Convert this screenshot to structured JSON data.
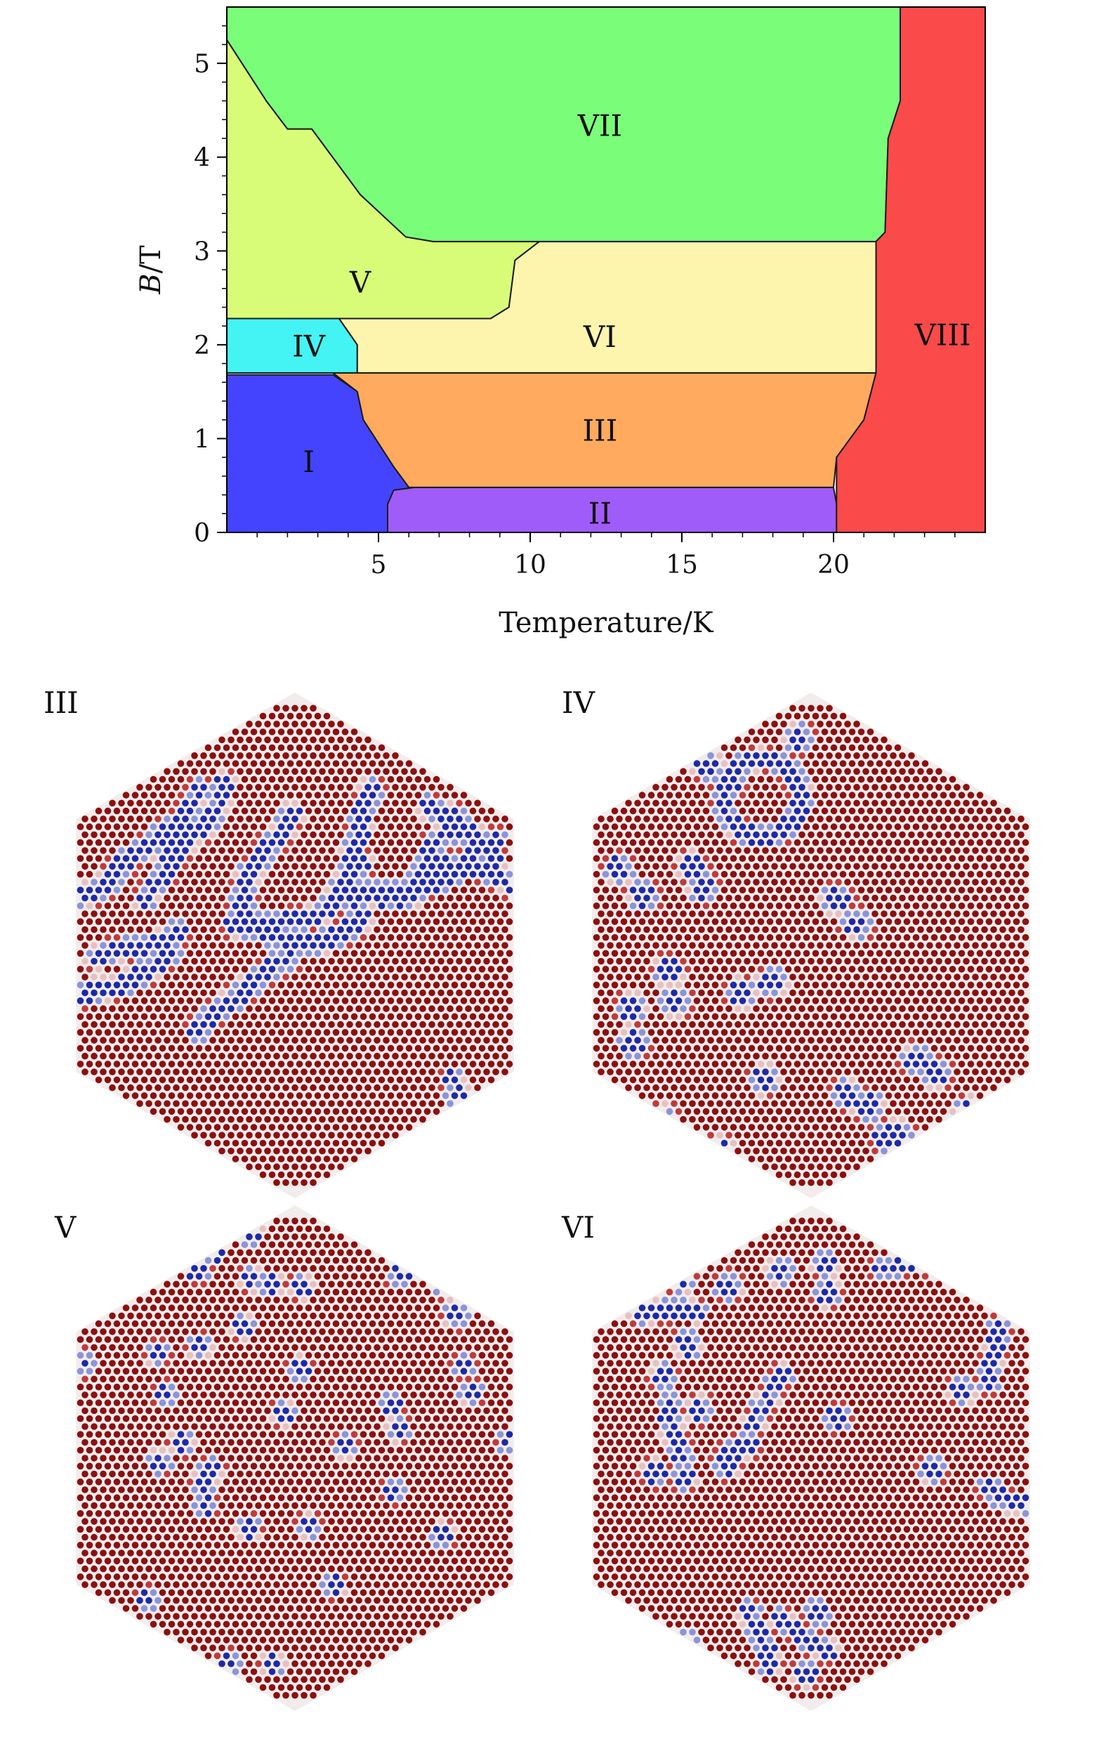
{
  "chart_data": {
    "type": "area",
    "title": "",
    "xlabel": "Temperature/K",
    "ylabel": "B/T",
    "xlim": [
      0,
      25
    ],
    "ylim": [
      0,
      5.6
    ],
    "xticks": [
      5,
      10,
      15,
      20
    ],
    "yticks": [
      0,
      1,
      2,
      3,
      4,
      5
    ],
    "grid": false,
    "legend": "none",
    "phases": [
      {
        "label": "I",
        "color": "#4444ff",
        "label_at": [
          2.7,
          0.75
        ],
        "boundary": [
          [
            0,
            0
          ],
          [
            0,
            1.68
          ],
          [
            3.5,
            1.68
          ],
          [
            4.3,
            1.5
          ],
          [
            4.5,
            1.2
          ],
          [
            5.0,
            0.95
          ],
          [
            5.5,
            0.7
          ],
          [
            6.0,
            0.48
          ],
          [
            5.5,
            0.4
          ],
          [
            5.3,
            0.2
          ],
          [
            5.3,
            0
          ]
        ]
      },
      {
        "label": "II",
        "color": "#a05cf9",
        "label_at": [
          12.3,
          0.2
        ],
        "boundary": [
          [
            5.3,
            0
          ],
          [
            5.3,
            0.3
          ],
          [
            5.5,
            0.45
          ],
          [
            6.2,
            0.48
          ],
          [
            20.0,
            0.48
          ],
          [
            20.1,
            0.3
          ],
          [
            20.1,
            0
          ]
        ]
      },
      {
        "label": "III",
        "color": "#ffaa5e",
        "label_at": [
          12.3,
          1.08
        ],
        "boundary": [
          [
            3.5,
            1.7
          ],
          [
            4.3,
            1.5
          ],
          [
            4.5,
            1.2
          ],
          [
            5.0,
            0.95
          ],
          [
            5.5,
            0.7
          ],
          [
            6.0,
            0.48
          ],
          [
            20.0,
            0.48
          ],
          [
            20.1,
            0.8
          ],
          [
            21.0,
            1.2
          ],
          [
            21.4,
            1.7
          ]
        ]
      },
      {
        "label": "IV",
        "color": "#44f4f4",
        "label_at": [
          2.7,
          1.98
        ],
        "boundary": [
          [
            0,
            1.7
          ],
          [
            0,
            2.28
          ],
          [
            3.7,
            2.28
          ],
          [
            4.3,
            2.0
          ],
          [
            4.3,
            1.7
          ]
        ]
      },
      {
        "label": "V",
        "color": "#d8fb78",
        "label_at": [
          4.4,
          2.66
        ],
        "boundary": [
          [
            0,
            2.28
          ],
          [
            0,
            5.25
          ],
          [
            1.3,
            4.6
          ],
          [
            2.0,
            4.3
          ],
          [
            2.8,
            4.3
          ],
          [
            4.4,
            3.6
          ],
          [
            5.9,
            3.15
          ],
          [
            6.8,
            3.1
          ],
          [
            10.3,
            3.1
          ],
          [
            9.5,
            2.9
          ],
          [
            9.3,
            2.4
          ],
          [
            8.7,
            2.28
          ]
        ]
      },
      {
        "label": "VI",
        "color": "#fdf5ae",
        "label_at": [
          12.3,
          2.08
        ],
        "boundary": [
          [
            3.7,
            2.28
          ],
          [
            4.3,
            2.0
          ],
          [
            4.3,
            1.7
          ],
          [
            21.4,
            1.7
          ],
          [
            21.4,
            3.1
          ],
          [
            10.3,
            3.1
          ],
          [
            9.5,
            2.9
          ],
          [
            9.3,
            2.4
          ],
          [
            8.7,
            2.28
          ]
        ]
      },
      {
        "label": "VII",
        "color": "#7afe7a",
        "label_at": [
          12.3,
          4.33
        ],
        "boundary": [
          [
            0,
            5.6
          ],
          [
            0,
            5.25
          ],
          [
            1.3,
            4.6
          ],
          [
            2.0,
            4.3
          ],
          [
            2.8,
            4.3
          ],
          [
            4.4,
            3.6
          ],
          [
            5.9,
            3.15
          ],
          [
            6.8,
            3.1
          ],
          [
            21.4,
            3.1
          ],
          [
            21.7,
            3.2
          ],
          [
            21.8,
            4.2
          ],
          [
            22.2,
            4.6
          ],
          [
            22.2,
            5.6
          ]
        ]
      },
      {
        "label": "VIII",
        "color": "#fb4a4a",
        "label_at": [
          23.6,
          2.1
        ],
        "boundary": [
          [
            20.1,
            0
          ],
          [
            20.1,
            0.8
          ],
          [
            21.0,
            1.2
          ],
          [
            21.4,
            1.7
          ],
          [
            21.4,
            3.1
          ],
          [
            21.7,
            3.2
          ],
          [
            21.8,
            4.2
          ],
          [
            22.2,
            4.6
          ],
          [
            22.2,
            5.6
          ],
          [
            25,
            5.6
          ],
          [
            25,
            0
          ]
        ]
      }
    ]
  },
  "panels": [
    {
      "label": "III",
      "pattern": "stripes"
    },
    {
      "label": "IV",
      "pattern": "skyrmion-bubbles"
    },
    {
      "label": "V",
      "pattern": "skyrmions"
    },
    {
      "label": "VI",
      "pattern": "mixed"
    }
  ],
  "colors": {
    "spin_up": "#8b1010",
    "spin_mid": "#c03a3a",
    "spin_light": "#e8c0c0",
    "spin_down": "#1c2aa8",
    "spin_down_light": "#8a94d8"
  }
}
